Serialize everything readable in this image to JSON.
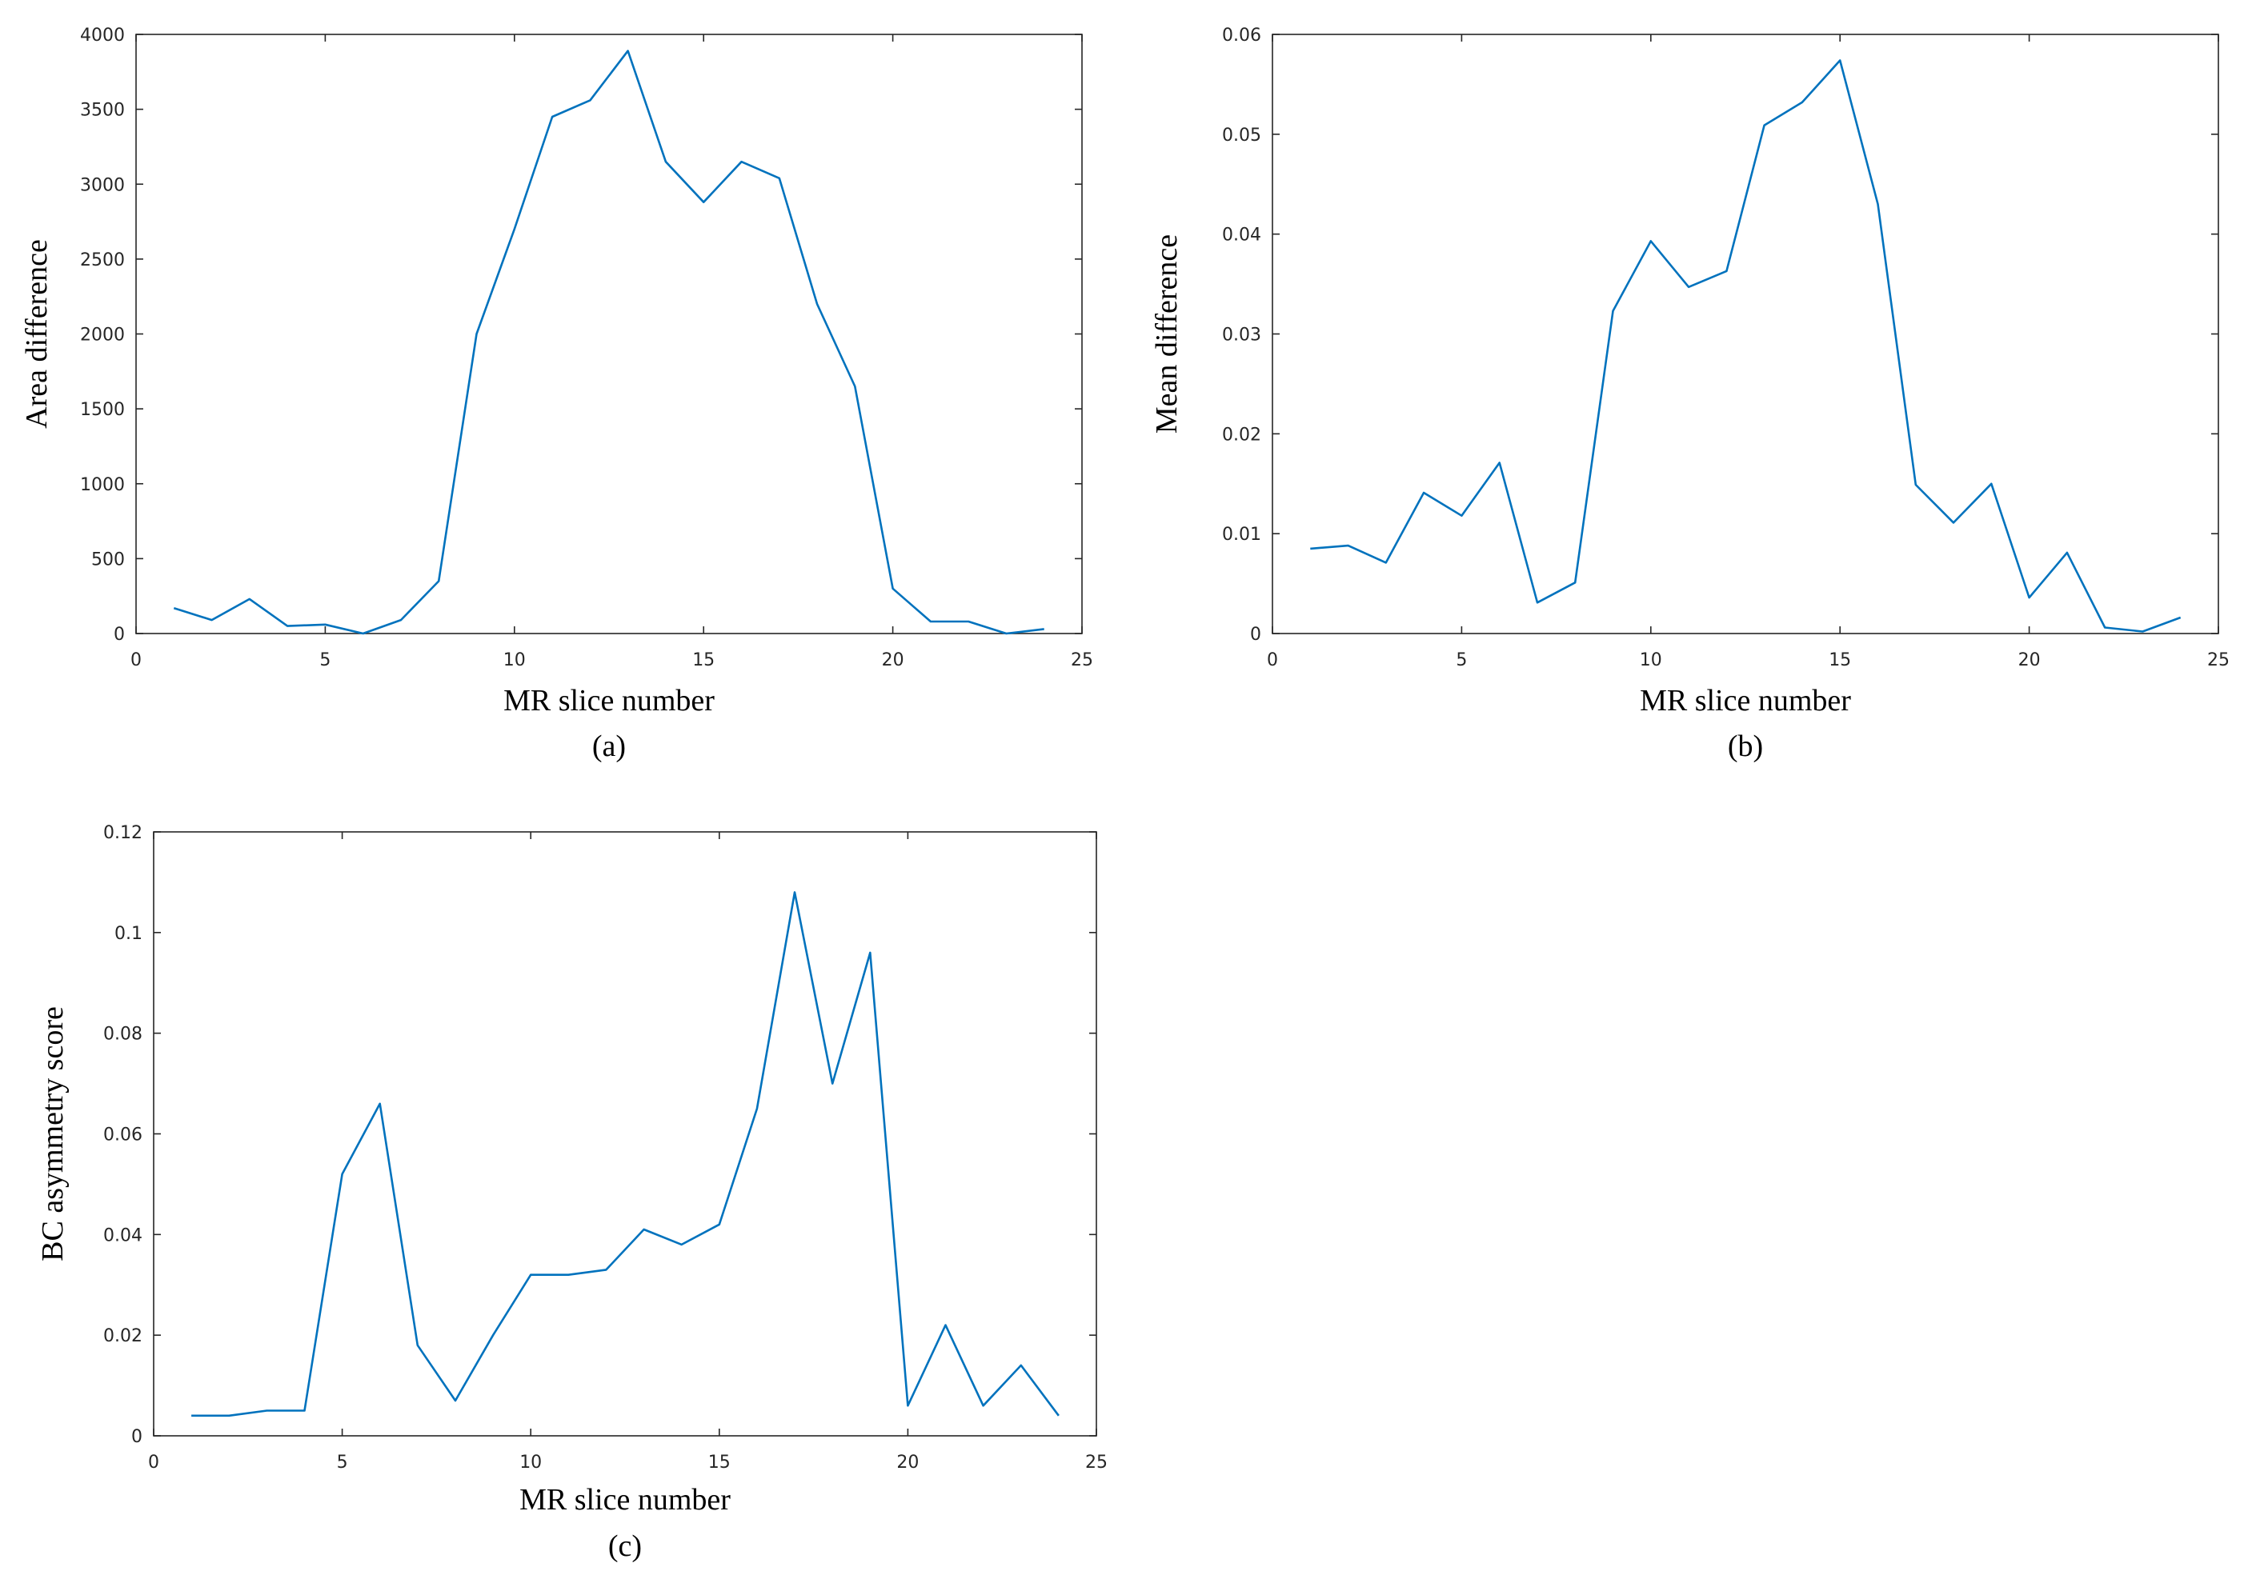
{
  "chart_data": [
    {
      "type": "line",
      "caption": "(a)",
      "xlabel": "MR slice number",
      "ylabel": "Area difference",
      "xlim": [
        0,
        25
      ],
      "ylim": [
        0,
        4000
      ],
      "xticks": [
        0,
        5,
        10,
        15,
        20,
        25
      ],
      "yticks": [
        0,
        500,
        1000,
        1500,
        2000,
        2500,
        3000,
        3500,
        4000
      ],
      "grid": false,
      "legend": "none",
      "color": "#0072BD",
      "series": [
        {
          "x": [
            1,
            2,
            3,
            4,
            5,
            6,
            7,
            8,
            9,
            10,
            11,
            12,
            13,
            14,
            15,
            16,
            17,
            18,
            19,
            20,
            21,
            22,
            23,
            24
          ],
          "values": [
            170,
            90,
            230,
            50,
            60,
            0,
            90,
            350,
            2000,
            2700,
            3450,
            3560,
            3890,
            3150,
            2880,
            3150,
            3040,
            2200,
            1650,
            300,
            80,
            80,
            0,
            30
          ]
        }
      ]
    },
    {
      "type": "line",
      "caption": "(b)",
      "xlabel": "MR slice number",
      "ylabel": "Mean difference",
      "xlim": [
        0,
        25
      ],
      "ylim": [
        0,
        0.06
      ],
      "xticks": [
        0,
        5,
        10,
        15,
        20,
        25
      ],
      "yticks": [
        0,
        0.01,
        0.02,
        0.03,
        0.04,
        0.05,
        0.06
      ],
      "grid": false,
      "legend": "none",
      "color": "#0072BD",
      "series": [
        {
          "x": [
            1,
            2,
            3,
            4,
            5,
            6,
            7,
            8,
            9,
            10,
            11,
            12,
            13,
            14,
            15,
            16,
            17,
            18,
            19,
            20,
            21,
            22,
            23,
            24
          ],
          "values": [
            0.0085,
            0.0088,
            0.0071,
            0.0141,
            0.0118,
            0.0171,
            0.0031,
            0.0051,
            0.0323,
            0.0393,
            0.0347,
            0.0363,
            0.0509,
            0.0532,
            0.0574,
            0.043,
            0.0149,
            0.0111,
            0.015,
            0.0036,
            0.0081,
            0.0006,
            0.0002,
            0.0016
          ]
        }
      ]
    },
    {
      "type": "line",
      "caption": "(c)",
      "xlabel": "MR slice number",
      "ylabel": "BC asymmetry score",
      "xlim": [
        0,
        25
      ],
      "ylim": [
        0,
        0.12
      ],
      "xticks": [
        0,
        5,
        10,
        15,
        20,
        25
      ],
      "yticks": [
        0,
        0.02,
        0.04,
        0.06,
        0.08,
        0.1,
        0.12
      ],
      "grid": false,
      "legend": "none",
      "color": "#0072BD",
      "series": [
        {
          "x": [
            1,
            2,
            3,
            4,
            5,
            6,
            7,
            8,
            9,
            10,
            11,
            12,
            13,
            14,
            15,
            16,
            17,
            18,
            19,
            20,
            21,
            22,
            23,
            24
          ],
          "values": [
            0.004,
            0.004,
            0.005,
            0.005,
            0.052,
            0.066,
            0.018,
            0.007,
            0.02,
            0.032,
            0.032,
            0.033,
            0.041,
            0.038,
            0.042,
            0.065,
            0.108,
            0.07,
            0.096,
            0.006,
            0.022,
            0.006,
            0.014,
            0.004
          ]
        }
      ]
    }
  ]
}
